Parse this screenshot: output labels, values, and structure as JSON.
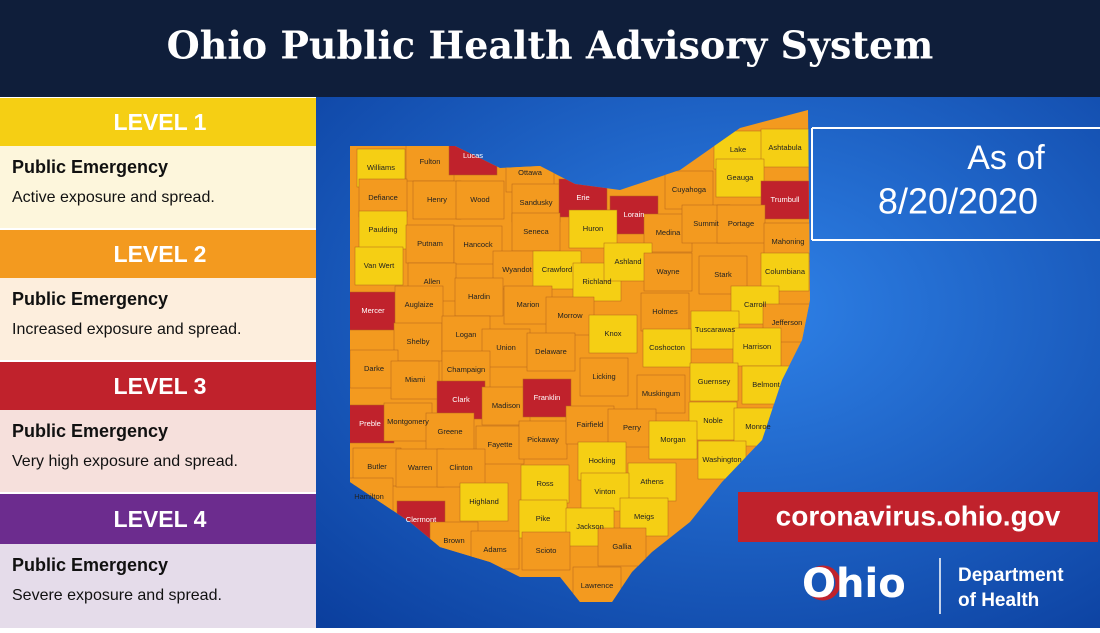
{
  "header": {
    "title": "Ohio Public Health Advisory System"
  },
  "levels": [
    {
      "label": "LEVEL 1",
      "color": "#f5cf14",
      "body_color": "#fdf6dc",
      "title": "Public Emergency",
      "description": "Active exposure and spread."
    },
    {
      "label": "LEVEL 2",
      "color": "#f39a1f",
      "body_color": "#fdeedd",
      "title": "Public Emergency",
      "description": "Increased exposure and spread."
    },
    {
      "label": "LEVEL 3",
      "color": "#c0222c",
      "body_color": "#f6e0dc",
      "title": "Public Emergency",
      "description": "Very high exposure and spread."
    },
    {
      "label": "LEVEL 4",
      "color": "#6c2c8e",
      "body_color": "#e5dcea",
      "title": "Public Emergency",
      "description": "Severe exposure and spread."
    }
  ],
  "date_box": {
    "line1": "As of",
    "line2": "8/20/2020"
  },
  "url": "coronavirus.ohio.gov",
  "logo": {
    "wordmark": "Ohio",
    "line1": "Department",
    "line2": "of Health"
  },
  "counties": [
    {
      "name": "Williams",
      "level": 1
    },
    {
      "name": "Fulton",
      "level": 2
    },
    {
      "name": "Lucas",
      "level": 3
    },
    {
      "name": "Ottawa",
      "level": 2
    },
    {
      "name": "Defiance",
      "level": 2
    },
    {
      "name": "Henry",
      "level": 2
    },
    {
      "name": "Wood",
      "level": 2
    },
    {
      "name": "Sandusky",
      "level": 2
    },
    {
      "name": "Erie",
      "level": 3
    },
    {
      "name": "Lorain",
      "level": 3
    },
    {
      "name": "Cuyahoga",
      "level": 2
    },
    {
      "name": "Lake",
      "level": 1
    },
    {
      "name": "Ashtabula",
      "level": 1
    },
    {
      "name": "Geauga",
      "level": 1
    },
    {
      "name": "Trumbull",
      "level": 3
    },
    {
      "name": "Paulding",
      "level": 1
    },
    {
      "name": "Putnam",
      "level": 2
    },
    {
      "name": "Hancock",
      "level": 2
    },
    {
      "name": "Seneca",
      "level": 2
    },
    {
      "name": "Huron",
      "level": 1
    },
    {
      "name": "Medina",
      "level": 2
    },
    {
      "name": "Summit",
      "level": 2
    },
    {
      "name": "Portage",
      "level": 2
    },
    {
      "name": "Mahoning",
      "level": 2
    },
    {
      "name": "Van Wert",
      "level": 1
    },
    {
      "name": "Allen",
      "level": 2
    },
    {
      "name": "Wyandot",
      "level": 2
    },
    {
      "name": "Crawford",
      "level": 1
    },
    {
      "name": "Richland",
      "level": 1
    },
    {
      "name": "Ashland",
      "level": 1
    },
    {
      "name": "Wayne",
      "level": 2
    },
    {
      "name": "Stark",
      "level": 2
    },
    {
      "name": "Columbiana",
      "level": 1
    },
    {
      "name": "Mercer",
      "level": 3
    },
    {
      "name": "Auglaize",
      "level": 2
    },
    {
      "name": "Hardin",
      "level": 2
    },
    {
      "name": "Marion",
      "level": 2
    },
    {
      "name": "Morrow",
      "level": 2
    },
    {
      "name": "Holmes",
      "level": 2
    },
    {
      "name": "Carroll",
      "level": 1
    },
    {
      "name": "Jefferson",
      "level": 2
    },
    {
      "name": "Knox",
      "level": 1
    },
    {
      "name": "Tuscarawas",
      "level": 1
    },
    {
      "name": "Shelby",
      "level": 2
    },
    {
      "name": "Logan",
      "level": 2
    },
    {
      "name": "Union",
      "level": 2
    },
    {
      "name": "Delaware",
      "level": 2
    },
    {
      "name": "Coshocton",
      "level": 1
    },
    {
      "name": "Harrison",
      "level": 1
    },
    {
      "name": "Darke",
      "level": 2
    },
    {
      "name": "Champaign",
      "level": 2
    },
    {
      "name": "Miami",
      "level": 2
    },
    {
      "name": "Licking",
      "level": 2
    },
    {
      "name": "Guernsey",
      "level": 1
    },
    {
      "name": "Belmont",
      "level": 1
    },
    {
      "name": "Muskingum",
      "level": 2
    },
    {
      "name": "Clark",
      "level": 3
    },
    {
      "name": "Madison",
      "level": 2
    },
    {
      "name": "Franklin",
      "level": 3
    },
    {
      "name": "Preble",
      "level": 3
    },
    {
      "name": "Montgomery",
      "level": 2
    },
    {
      "name": "Greene",
      "level": 2
    },
    {
      "name": "Fayette",
      "level": 2
    },
    {
      "name": "Pickaway",
      "level": 2
    },
    {
      "name": "Fairfield",
      "level": 2
    },
    {
      "name": "Perry",
      "level": 2
    },
    {
      "name": "Noble",
      "level": 1
    },
    {
      "name": "Monroe",
      "level": 1
    },
    {
      "name": "Morgan",
      "level": 1
    },
    {
      "name": "Washington",
      "level": 1
    },
    {
      "name": "Butler",
      "level": 2
    },
    {
      "name": "Warren",
      "level": 2
    },
    {
      "name": "Clinton",
      "level": 2
    },
    {
      "name": "Hocking",
      "level": 1
    },
    {
      "name": "Ross",
      "level": 1
    },
    {
      "name": "Athens",
      "level": 1
    },
    {
      "name": "Vinton",
      "level": 1
    },
    {
      "name": "Hamilton",
      "level": 2
    },
    {
      "name": "Highland",
      "level": 1
    },
    {
      "name": "Clermont",
      "level": 3
    },
    {
      "name": "Pike",
      "level": 1
    },
    {
      "name": "Jackson",
      "level": 1
    },
    {
      "name": "Meigs",
      "level": 1
    },
    {
      "name": "Brown",
      "level": 2
    },
    {
      "name": "Adams",
      "level": 2
    },
    {
      "name": "Scioto",
      "level": 2
    },
    {
      "name": "Gallia",
      "level": 2
    },
    {
      "name": "Lawrence",
      "level": 2
    }
  ]
}
